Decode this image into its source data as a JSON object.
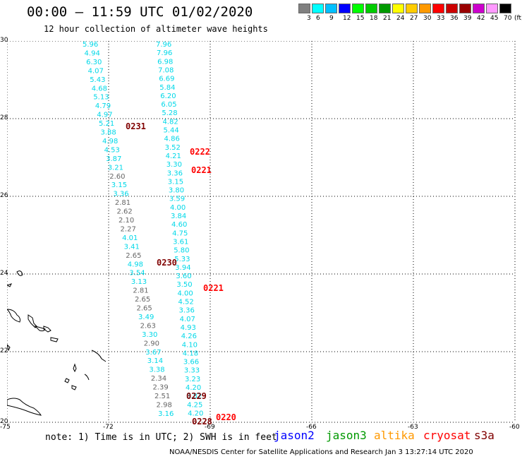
{
  "header": {
    "title": "00:00 – 11:59 UTC 01/02/2020",
    "subtitle": "12 hour collection of altimeter wave heights"
  },
  "legend": {
    "unit_label": "(ft)",
    "colors": [
      "#808080",
      "#00ffff",
      "#00bfff",
      "#0000ff",
      "#00ff00",
      "#00cc00",
      "#009900",
      "#ffff00",
      "#ffcc00",
      "#ff9900",
      "#ff0000",
      "#cc0000",
      "#990000",
      "#cc00cc",
      "#ff99ff",
      "#000000"
    ],
    "labels": [
      "3",
      "6",
      "9",
      "12",
      "15",
      "18",
      "21",
      "24",
      "27",
      "30",
      "33",
      "36",
      "39",
      "42",
      "45",
      "70"
    ]
  },
  "axes": {
    "y_ticks": [
      "30",
      "28",
      "26",
      "24",
      "22",
      "20"
    ],
    "x_ticks": [
      "-75",
      "-72",
      "-69",
      "-66",
      "-63",
      "-60"
    ]
  },
  "tracks": {
    "track_left": {
      "color_name": "cyan-gray",
      "values": [
        "5.96",
        "4.94",
        "6.30",
        "4.07",
        "5.43",
        "4.68",
        "5.13",
        "4.79",
        "4.97",
        "5.21",
        "3.88",
        "4.98",
        "4.53",
        "3.87",
        "3.21",
        "2.60",
        "3.15",
        "3.36",
        "2.81",
        "2.62",
        "2.10",
        "2.27",
        "4.01",
        "3.41",
        "2.65",
        "4.98",
        "3.54",
        "3.13",
        "2.81",
        "2.65",
        "2.65",
        "3.49",
        "2.63",
        "3.30",
        "2.90",
        "3.67",
        "3.14",
        "3.38",
        "2.34",
        "2.39",
        "2.51",
        "2.98",
        "3.16"
      ],
      "tags": [
        "c",
        "c",
        "c",
        "c",
        "c",
        "c",
        "c",
        "c",
        "c",
        "c",
        "c",
        "c",
        "c",
        "c",
        "c",
        "g",
        "c",
        "c",
        "g",
        "g",
        "g",
        "g",
        "c",
        "c",
        "g",
        "c",
        "c",
        "c",
        "g",
        "g",
        "g",
        "c",
        "g",
        "c",
        "g",
        "c",
        "c",
        "c",
        "g",
        "g",
        "g",
        "g",
        "c"
      ]
    },
    "track_right": {
      "values": [
        "7.96",
        "7.96",
        "6.98",
        "7.08",
        "6.69",
        "5.84",
        "6.20",
        "6.05",
        "5.28",
        "4.82",
        "5.44",
        "4.86",
        "3.52",
        "4.21",
        "3.30",
        "3.36",
        "3.15",
        "3.80",
        "3.59",
        "4.00",
        "3.84",
        "4.60",
        "4.75",
        "3.61",
        "5.80",
        "5.33",
        "3.94",
        "3.60",
        "3.50",
        "4.00",
        "4.52",
        "3.36",
        "4.07",
        "4.93",
        "4.26",
        "4.10",
        "4.18",
        "3.66",
        "3.33",
        "3.23",
        "4.20",
        "3.82",
        "4.25",
        "4.20"
      ]
    },
    "time_stamps": [
      {
        "text": "0231",
        "color": "#800000"
      },
      {
        "text": "0222",
        "color": "#ff0000"
      },
      {
        "text": "0221",
        "color": "#ff0000"
      },
      {
        "text": "0230",
        "color": "#800000"
      },
      {
        "text": "0221",
        "color": "#ff0000"
      },
      {
        "text": "0229",
        "color": "#800000"
      },
      {
        "text": "0220",
        "color": "#ff0000"
      },
      {
        "text": "0228",
        "color": "#800000"
      }
    ]
  },
  "footer": {
    "note": "note: 1) Time is in UTC; 2) SWH is in feet",
    "credit": "NOAA/NESDIS Center for Satellite Applications and Research   Jan  3 13:27:14 UTC 2020",
    "satellites": [
      {
        "name": "jason2",
        "color": "#0000ff"
      },
      {
        "name": "jason3",
        "color": "#009900"
      },
      {
        "name": "altika",
        "color": "#ff9900"
      },
      {
        "name": "cryosat",
        "color": "#ff0000"
      },
      {
        "name": "s3a",
        "color": "#800000"
      }
    ]
  }
}
